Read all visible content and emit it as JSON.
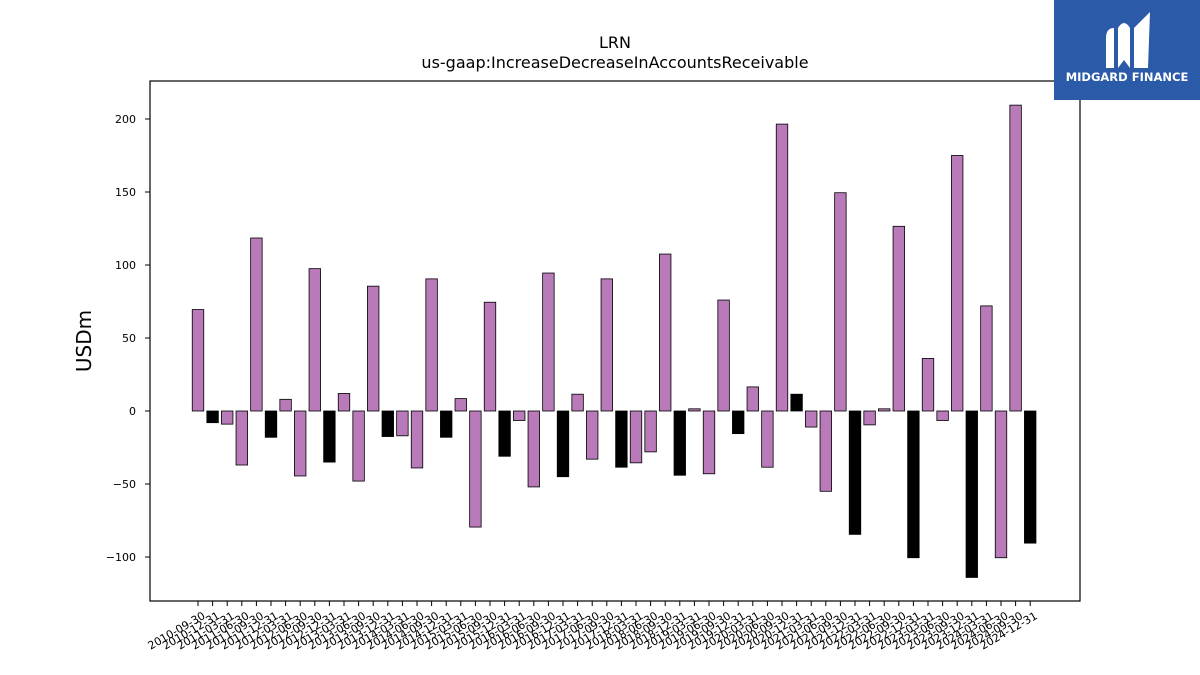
{
  "chart_data": {
    "type": "bar",
    "title": "LRN",
    "subtitle": "us-gaap:IncreaseDecreaseInAccountsReceivable",
    "ylabel": "USDm",
    "xlabel": "",
    "ylim": [
      -130,
      225
    ],
    "yticks": [
      -100,
      -50,
      0,
      50,
      100,
      150,
      200
    ],
    "grid": false,
    "colors": {
      "quarterly": "#b87ab8",
      "annual": "#000000",
      "edge": "#000000"
    },
    "bars": [
      {
        "date": "2010-09-30",
        "value": 69.5,
        "kind": "quarterly"
      },
      {
        "date": "2010-12-31",
        "value": -8,
        "kind": "annual"
      },
      {
        "date": "2011-03-31",
        "value": -9,
        "kind": "quarterly"
      },
      {
        "date": "2011-06-30",
        "value": -37,
        "kind": "quarterly"
      },
      {
        "date": "2011-09-30",
        "value": 118.5,
        "kind": "quarterly"
      },
      {
        "date": "2011-12-31",
        "value": -18,
        "kind": "annual"
      },
      {
        "date": "2012-03-31",
        "value": 8,
        "kind": "quarterly"
      },
      {
        "date": "2012-06-30",
        "value": -44.5,
        "kind": "quarterly"
      },
      {
        "date": "2012-09-30",
        "value": 97.5,
        "kind": "quarterly"
      },
      {
        "date": "2012-12-31",
        "value": -35,
        "kind": "annual"
      },
      {
        "date": "2013-03-31",
        "value": 12,
        "kind": "quarterly"
      },
      {
        "date": "2013-06-30",
        "value": -48,
        "kind": "quarterly"
      },
      {
        "date": "2013-09-30",
        "value": 85.5,
        "kind": "quarterly"
      },
      {
        "date": "2013-12-31",
        "value": -17.5,
        "kind": "annual"
      },
      {
        "date": "2014-03-31",
        "value": -17,
        "kind": "quarterly"
      },
      {
        "date": "2014-06-30",
        "value": -39,
        "kind": "quarterly"
      },
      {
        "date": "2014-09-30",
        "value": 90.5,
        "kind": "quarterly"
      },
      {
        "date": "2014-12-31",
        "value": -18,
        "kind": "annual"
      },
      {
        "date": "2015-03-31",
        "value": 8.5,
        "kind": "quarterly"
      },
      {
        "date": "2015-06-30",
        "value": -79.5,
        "kind": "quarterly"
      },
      {
        "date": "2015-09-30",
        "value": 74.5,
        "kind": "quarterly"
      },
      {
        "date": "2015-12-31",
        "value": -31,
        "kind": "annual"
      },
      {
        "date": "2016-03-31",
        "value": -6.5,
        "kind": "quarterly"
      },
      {
        "date": "2016-06-30",
        "value": -52,
        "kind": "quarterly"
      },
      {
        "date": "2016-09-30",
        "value": 94.5,
        "kind": "quarterly"
      },
      {
        "date": "2016-12-31",
        "value": -45,
        "kind": "annual"
      },
      {
        "date": "2017-03-31",
        "value": 11.5,
        "kind": "quarterly"
      },
      {
        "date": "2017-06-30",
        "value": -33,
        "kind": "quarterly"
      },
      {
        "date": "2017-09-30",
        "value": 90.5,
        "kind": "quarterly"
      },
      {
        "date": "2017-12-31",
        "value": -38.5,
        "kind": "annual"
      },
      {
        "date": "2018-03-31",
        "value": -35.5,
        "kind": "quarterly"
      },
      {
        "date": "2018-06-30",
        "value": -28,
        "kind": "quarterly"
      },
      {
        "date": "2018-09-30",
        "value": 107.5,
        "kind": "quarterly"
      },
      {
        "date": "2018-12-31",
        "value": -44,
        "kind": "annual"
      },
      {
        "date": "2019-03-31",
        "value": 1.5,
        "kind": "quarterly"
      },
      {
        "date": "2019-06-30",
        "value": -43,
        "kind": "quarterly"
      },
      {
        "date": "2019-09-30",
        "value": 76,
        "kind": "quarterly"
      },
      {
        "date": "2019-12-31",
        "value": -15.5,
        "kind": "annual"
      },
      {
        "date": "2020-03-31",
        "value": 16.5,
        "kind": "quarterly"
      },
      {
        "date": "2020-06-30",
        "value": -38.5,
        "kind": "quarterly"
      },
      {
        "date": "2020-09-30",
        "value": 196.5,
        "kind": "quarterly"
      },
      {
        "date": "2020-12-31",
        "value": 11.5,
        "kind": "annual"
      },
      {
        "date": "2021-03-31",
        "value": -11,
        "kind": "quarterly"
      },
      {
        "date": "2021-06-30",
        "value": -55,
        "kind": "quarterly"
      },
      {
        "date": "2021-09-30",
        "value": 149.5,
        "kind": "quarterly"
      },
      {
        "date": "2021-12-31",
        "value": -84.5,
        "kind": "annual"
      },
      {
        "date": "2022-03-31",
        "value": -9.5,
        "kind": "quarterly"
      },
      {
        "date": "2022-06-30",
        "value": 1.5,
        "kind": "quarterly"
      },
      {
        "date": "2022-09-30",
        "value": 126.5,
        "kind": "quarterly"
      },
      {
        "date": "2022-12-31",
        "value": -100.5,
        "kind": "annual"
      },
      {
        "date": "2023-03-31",
        "value": 36,
        "kind": "quarterly"
      },
      {
        "date": "2023-06-30",
        "value": -6.5,
        "kind": "quarterly"
      },
      {
        "date": "2023-09-30",
        "value": 175,
        "kind": "quarterly"
      },
      {
        "date": "2023-12-31",
        "value": -114,
        "kind": "annual"
      },
      {
        "date": "2024-03-31",
        "value": 72,
        "kind": "quarterly"
      },
      {
        "date": "2024-06-30",
        "value": -100.5,
        "kind": "quarterly"
      },
      {
        "date": "2024-09-30",
        "value": 209.5,
        "kind": "quarterly"
      },
      {
        "date": "2024-12-31",
        "value": -90.5,
        "kind": "annual"
      }
    ]
  },
  "logo": {
    "text": "MIDGARD FINANCE",
    "background": "#2a5aa8",
    "icon": "midgard-m-logo-icon"
  }
}
